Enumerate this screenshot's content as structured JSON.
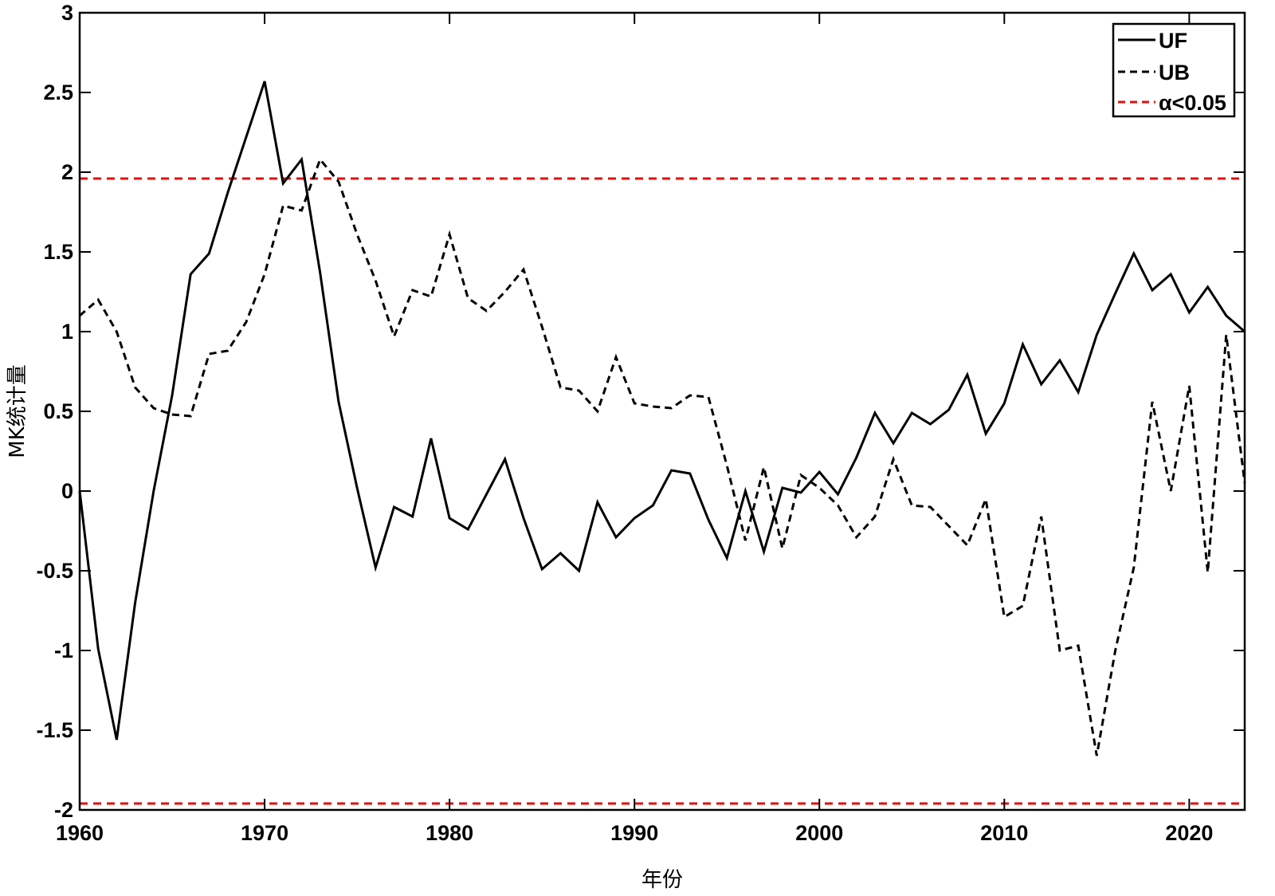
{
  "chart_data": {
    "type": "line",
    "title": "",
    "xlabel": "年份",
    "ylabel": "MK统计量",
    "xlim": [
      1960,
      2023
    ],
    "ylim": [
      -2,
      3
    ],
    "xticks": [
      1960,
      1970,
      1980,
      1990,
      2000,
      2010,
      2020
    ],
    "yticks": [
      -2,
      -1.5,
      -1,
      -0.5,
      0,
      0.5,
      1,
      1.5,
      2,
      2.5,
      3
    ],
    "ytick_labels": [
      "-2",
      "-1.5",
      "-1",
      "-0.5",
      "0",
      "0.5",
      "1",
      "1.5",
      "2",
      "2.5",
      "3"
    ],
    "xtick_labels": [
      "1960",
      "1970",
      "1980",
      "1990",
      "2000",
      "2010",
      "2020"
    ],
    "grid": false,
    "legend_position": "top-right",
    "x": [
      1960,
      1961,
      1962,
      1963,
      1964,
      1965,
      1966,
      1967,
      1968,
      1969,
      1970,
      1971,
      1972,
      1973,
      1974,
      1975,
      1976,
      1977,
      1978,
      1979,
      1980,
      1981,
      1982,
      1983,
      1984,
      1985,
      1986,
      1987,
      1988,
      1989,
      1990,
      1991,
      1992,
      1993,
      1994,
      1995,
      1996,
      1997,
      1998,
      1999,
      2000,
      2001,
      2002,
      2003,
      2004,
      2005,
      2006,
      2007,
      2008,
      2009,
      2010,
      2011,
      2012,
      2013,
      2014,
      2015,
      2016,
      2017,
      2018,
      2019,
      2020,
      2021,
      2022,
      2023
    ],
    "series": [
      {
        "name": "UF",
        "style": "solid",
        "color": "#000000",
        "values": [
          0.0,
          -0.99,
          -1.56,
          -0.7,
          0.0,
          0.6,
          1.36,
          1.49,
          1.87,
          2.22,
          2.57,
          1.93,
          2.08,
          1.37,
          0.56,
          0.02,
          -0.48,
          -0.1,
          -0.16,
          0.33,
          -0.17,
          -0.24,
          -0.02,
          0.2,
          -0.17,
          -0.49,
          -0.39,
          -0.5,
          -0.07,
          -0.29,
          -0.17,
          -0.09,
          0.13,
          0.11,
          -0.18,
          -0.42,
          0.0,
          -0.38,
          0.02,
          -0.01,
          0.12,
          -0.02,
          0.21,
          0.49,
          0.3,
          0.49,
          0.42,
          0.51,
          0.73,
          0.36,
          0.55,
          0.92,
          0.67,
          0.82,
          0.62,
          0.98,
          1.24,
          1.49,
          1.26,
          1.36,
          1.12,
          1.28,
          1.1,
          1.0
        ]
      },
      {
        "name": "UB",
        "style": "dashed",
        "color": "#000000",
        "values": [
          1.1,
          1.2,
          1.0,
          0.65,
          0.52,
          0.48,
          0.47,
          0.86,
          0.88,
          1.06,
          1.36,
          1.79,
          1.76,
          2.08,
          1.94,
          1.61,
          1.32,
          0.97,
          1.26,
          1.22,
          1.61,
          1.21,
          1.13,
          1.25,
          1.39,
          1.03,
          0.65,
          0.63,
          0.5,
          0.84,
          0.55,
          0.53,
          0.52,
          0.6,
          0.59,
          0.16,
          -0.31,
          0.15,
          -0.36,
          0.1,
          0.02,
          -0.09,
          -0.29,
          -0.16,
          0.2,
          -0.09,
          -0.1,
          -0.22,
          -0.34,
          -0.05,
          -0.79,
          -0.72,
          -0.16,
          -1.0,
          -0.97,
          -1.66,
          -1.0,
          -0.48,
          0.56,
          0.0,
          0.66,
          -0.51,
          0.98,
          0.05
        ]
      },
      {
        "name": "α<0.05",
        "style": "dashed",
        "color": "#e01010",
        "upper": 1.96,
        "lower": -1.96
      }
    ]
  }
}
